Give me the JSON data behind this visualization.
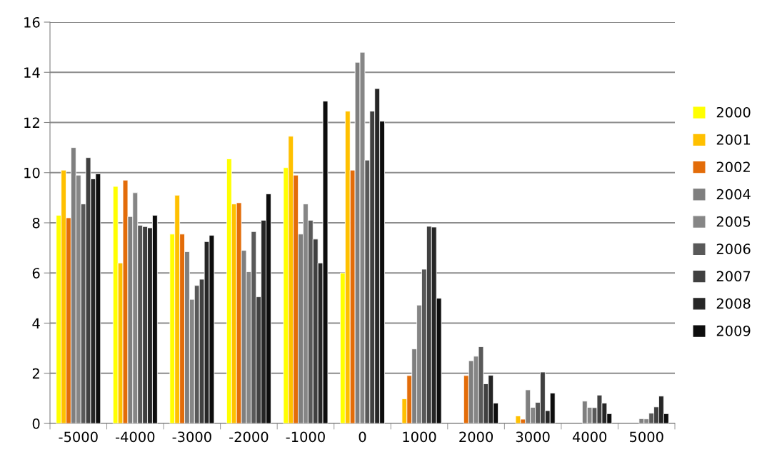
{
  "chart_data": {
    "type": "bar",
    "categories": [
      "-5000",
      "-4000",
      "-3000",
      "-2000",
      "-1000",
      "0",
      "1000",
      "2000",
      "3000",
      "4000",
      "5000"
    ],
    "series": [
      {
        "name": "2000",
        "color": "#ffff00",
        "values": [
          8.3,
          9.45,
          7.55,
          10.55,
          10.2,
          6.0,
          null,
          null,
          null,
          null,
          null
        ]
      },
      {
        "name": "2001",
        "color": "#ffc000",
        "values": [
          10.1,
          6.4,
          9.1,
          8.75,
          11.45,
          12.45,
          0.98,
          null,
          0.3,
          null,
          null
        ]
      },
      {
        "name": "2002",
        "color": "#e36c09",
        "values": [
          8.2,
          9.7,
          7.55,
          8.8,
          9.9,
          10.1,
          1.91,
          1.91,
          0.17,
          null,
          null
        ]
      },
      {
        "name": "2004",
        "color": "#7f7f7f",
        "values": [
          11.0,
          8.25,
          6.85,
          6.9,
          7.55,
          14.4,
          2.97,
          2.5,
          1.34,
          0.89,
          0.19
        ]
      },
      {
        "name": "2005",
        "color": "#868686",
        "values": [
          9.9,
          9.2,
          4.95,
          6.05,
          8.75,
          14.8,
          4.72,
          2.68,
          0.64,
          0.64,
          0.18
        ]
      },
      {
        "name": "2006",
        "color": "#595959",
        "values": [
          8.75,
          7.9,
          5.5,
          7.65,
          8.1,
          10.5,
          6.15,
          3.06,
          0.84,
          0.63,
          0.41
        ]
      },
      {
        "name": "2007",
        "color": "#404040",
        "values": [
          10.6,
          7.85,
          5.75,
          5.05,
          7.35,
          12.45,
          7.86,
          1.58,
          2.05,
          1.13,
          0.66
        ]
      },
      {
        "name": "2008",
        "color": "#262626",
        "values": [
          9.75,
          7.8,
          7.25,
          8.1,
          6.4,
          13.35,
          7.83,
          1.92,
          0.51,
          0.81,
          1.09
        ]
      },
      {
        "name": "2009",
        "color": "#0d0d0d",
        "values": [
          9.95,
          8.3,
          7.5,
          9.15,
          12.85,
          12.05,
          4.99,
          0.81,
          1.21,
          0.39,
          0.39
        ]
      }
    ],
    "ylim": [
      0,
      16
    ],
    "yticks": [
      0,
      2,
      4,
      6,
      8,
      10,
      12,
      14,
      16
    ],
    "grid": "y",
    "legend": "right"
  }
}
